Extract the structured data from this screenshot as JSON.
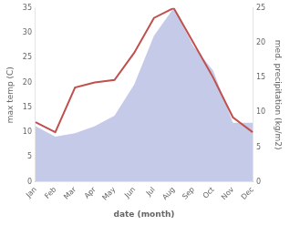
{
  "chart_data": {
    "type": "line",
    "categories": [
      "Jan",
      "Feb",
      "Mar",
      "Apr",
      "May",
      "Jun",
      "Jul",
      "Aug",
      "Sep",
      "Oct",
      "Nov",
      "Dec"
    ],
    "series": [
      {
        "type": "line",
        "color": "#c0504d",
        "values": [
          12,
          10,
          19,
          20,
          20.5,
          26,
          33,
          35,
          28,
          21,
          13,
          10
        ]
      },
      {
        "type": "area",
        "color": "#c5cae9",
        "axis": "y2",
        "values": [
          8,
          6.5,
          7,
          8,
          9.5,
          14,
          21,
          25,
          19.5,
          16,
          8.5,
          8.5
        ]
      }
    ],
    "xlabel": "date (month)",
    "ylabel": "max temp (C)",
    "y2label": "med. precipitation (kg/m2)",
    "ylim": [
      0,
      35
    ],
    "yticks": [
      0,
      5,
      10,
      15,
      20,
      25,
      30,
      35
    ],
    "y2lim": [
      0,
      25
    ],
    "y2ticks": [
      0,
      5,
      10,
      15,
      20,
      25
    ],
    "grid": false
  }
}
